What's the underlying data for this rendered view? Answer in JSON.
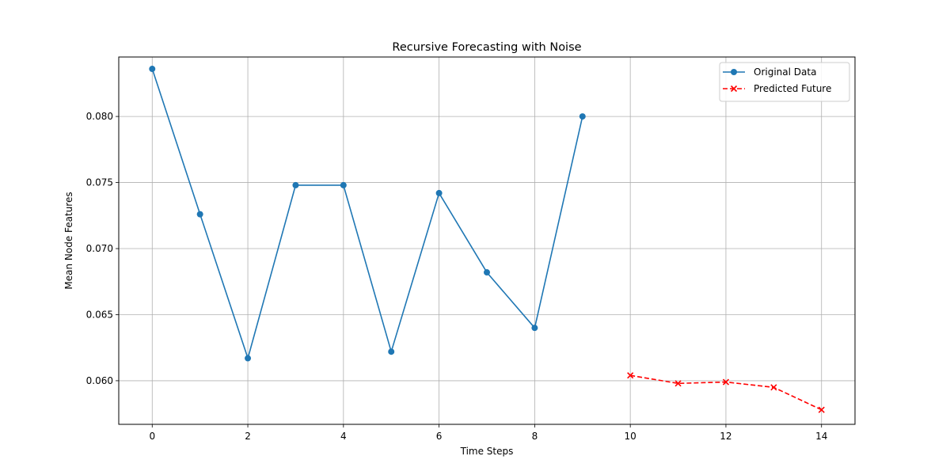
{
  "chart_data": {
    "type": "line",
    "title": "Recursive Forecasting with Noise",
    "xlabel": "Time Steps",
    "ylabel": "Mean Node Features",
    "xlim": [
      -0.7,
      14.7
    ],
    "ylim": [
      0.0567,
      0.0845
    ],
    "xticks": [
      0,
      2,
      4,
      6,
      8,
      10,
      12,
      14
    ],
    "xtick_labels": [
      "0",
      "2",
      "4",
      "6",
      "8",
      "10",
      "12",
      "14"
    ],
    "yticks": [
      0.06,
      0.065,
      0.07,
      0.075,
      0.08
    ],
    "ytick_labels": [
      "0.060",
      "0.065",
      "0.070",
      "0.075",
      "0.080"
    ],
    "grid": true,
    "legend_position": "top-right",
    "series": [
      {
        "name": "Original Data",
        "color": "#1f77b4",
        "line_style": "solid",
        "marker": "circle",
        "x": [
          0,
          1,
          2,
          3,
          4,
          5,
          6,
          7,
          8,
          9
        ],
        "y": [
          0.0836,
          0.0726,
          0.0617,
          0.0748,
          0.0748,
          0.0622,
          0.0742,
          0.0682,
          0.064,
          0.08
        ]
      },
      {
        "name": "Predicted Future",
        "color": "#ff0000",
        "line_style": "dashed",
        "marker": "x",
        "x": [
          10,
          11,
          12,
          13,
          14
        ],
        "y": [
          0.0604,
          0.0598,
          0.0599,
          0.0595,
          0.0578
        ]
      }
    ]
  }
}
